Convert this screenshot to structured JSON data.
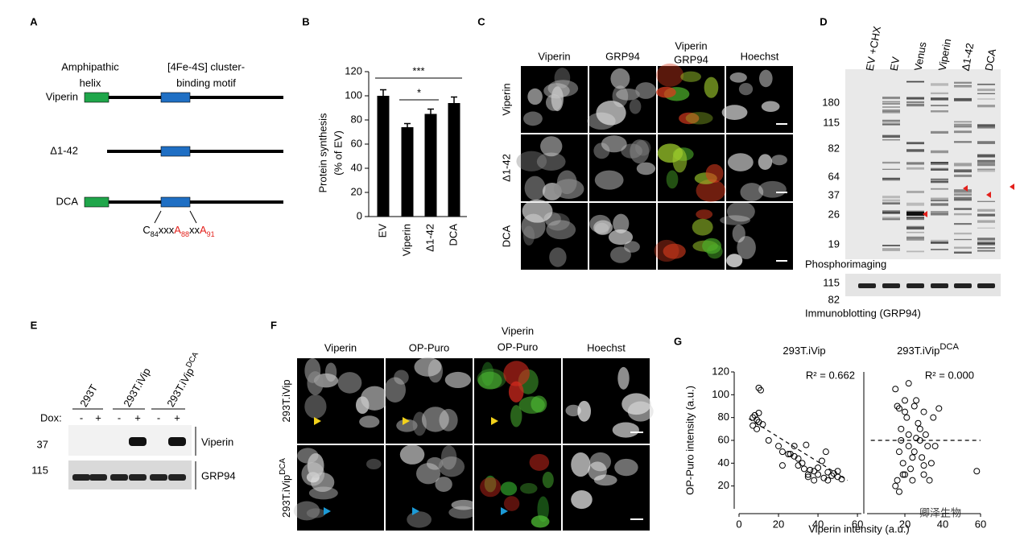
{
  "panels": {
    "A": {
      "label": "A",
      "helix": [
        "Amphipathic",
        "helix"
      ],
      "motif": [
        "[4Fe-4S] cluster-",
        "binding motif"
      ],
      "constructs": [
        "Viperin",
        "Δ1-42",
        "DCA"
      ],
      "mutation": [
        "C",
        "84",
        "xxx",
        "A",
        "88",
        "xx",
        "A",
        "91"
      ]
    },
    "B": {
      "label": "B",
      "chart": {
        "type": "bar",
        "ylabel": [
          "Protein synthesis",
          "(% of EV)"
        ],
        "categories": [
          "EV",
          "Viperin",
          "Δ1-42",
          "DCA"
        ],
        "values": [
          100,
          74,
          85,
          94
        ],
        "errors": [
          5,
          3,
          4,
          5
        ],
        "color": "#000000",
        "ylim": [
          0,
          120
        ],
        "yticks": [
          0,
          20,
          40,
          60,
          80,
          100,
          120
        ],
        "significance": [
          {
            "label": "***",
            "between": [
              0,
              3
            ]
          },
          {
            "label": "*",
            "between": [
              1,
              2
            ]
          }
        ]
      }
    },
    "C": {
      "label": "C",
      "columns": [
        "Viperin",
        "GRP94",
        "Hoechst"
      ],
      "merge": [
        "Viperin",
        "GRP94"
      ],
      "rows": [
        "Viperin",
        "Δ1-42",
        "DCA"
      ]
    },
    "D": {
      "label": "D",
      "lanes": [
        "EV +CHX",
        "EV",
        "Venus",
        "Viperin",
        "Δ1-42",
        "DCA"
      ],
      "markers": [
        180,
        115,
        82,
        64,
        37,
        26,
        19
      ],
      "method": "Phosphorimaging",
      "loading_markers": [
        115,
        82
      ],
      "loading_method": "Immunoblotting (GRP94)"
    },
    "E": {
      "label": "E",
      "lanes": [
        {
          "text": "293T"
        },
        {
          "text": "293T.iVip"
        },
        {
          "text": "293T.iVip",
          "sup": "DCA"
        }
      ],
      "dox_label": "Dox:",
      "dox": [
        "-",
        "+",
        "-",
        "+",
        "-",
        "+"
      ],
      "markers": [
        37,
        115
      ],
      "blots": [
        "Viperin",
        "GRP94"
      ]
    },
    "F": {
      "label": "F",
      "columns": [
        "Viperin",
        "OP-Puro",
        "Hoechst"
      ],
      "merge": [
        "Viperin",
        "OP-Puro"
      ],
      "rows": [
        {
          "text": "293T.iVip"
        },
        {
          "text": "293T.iVip",
          "sup": "DCA"
        }
      ]
    },
    "G": {
      "label": "G",
      "ylabel": "OP-Puro intensity (a.u.)",
      "xlabel": "Viperin intensity (a.u.)",
      "plots": [
        {
          "type": "scatter",
          "title": {
            "text": "293T.iVip"
          },
          "r2": "R² = 0.662",
          "xlim": [
            0,
            62
          ],
          "ylim": [
            0,
            120
          ],
          "xticks": [
            0,
            20,
            40,
            60
          ],
          "yticks": [
            20,
            40,
            60,
            80,
            100,
            120
          ],
          "x": [
            10,
            11,
            8,
            10,
            7,
            9,
            7,
            10,
            12,
            9,
            15,
            20,
            22,
            25,
            28,
            30,
            30,
            32,
            33,
            35,
            35,
            36,
            38,
            38,
            40,
            40,
            42,
            43,
            45,
            45,
            47,
            48,
            50,
            50,
            52,
            28,
            26,
            22,
            34,
            44
          ],
          "y": [
            106,
            104,
            82,
            84,
            80,
            78,
            73,
            76,
            74,
            70,
            60,
            55,
            50,
            48,
            46,
            44,
            38,
            40,
            35,
            30,
            28,
            34,
            33,
            25,
            36,
            30,
            42,
            27,
            32,
            25,
            29,
            31,
            33,
            28,
            26,
            55,
            48,
            38,
            56,
            50
          ],
          "trend": {
            "x": [
              5,
              55
            ],
            "y": [
              79,
              25
            ]
          }
        },
        {
          "type": "scatter",
          "title": {
            "text": "293T.iVip",
            "sup": "DCA"
          },
          "r2": "R² = 0.000",
          "xlim": [
            0,
            60
          ],
          "ylim": [
            0,
            120
          ],
          "xticks": [
            20,
            40,
            60
          ],
          "x": [
            15,
            16,
            17,
            18,
            18,
            19,
            20,
            20,
            21,
            22,
            22,
            23,
            24,
            25,
            25,
            26,
            27,
            28,
            29,
            30,
            30,
            31,
            32,
            33,
            34,
            35,
            15,
            16,
            17,
            19,
            20,
            22,
            24,
            26,
            28,
            30,
            36,
            38,
            58,
            17
          ],
          "y": [
            105,
            90,
            88,
            70,
            60,
            40,
            30,
            85,
            80,
            65,
            55,
            35,
            25,
            90,
            50,
            95,
            75,
            60,
            45,
            85,
            30,
            65,
            55,
            25,
            40,
            80,
            20,
            25,
            15,
            30,
            95,
            110,
            45,
            62,
            70,
            38,
            55,
            88,
            33,
            50
          ],
          "trend": {
            "x": [
              2,
              60
            ],
            "y": [
              60,
              60
            ]
          }
        }
      ]
    }
  },
  "watermark": "卿泽生物"
}
